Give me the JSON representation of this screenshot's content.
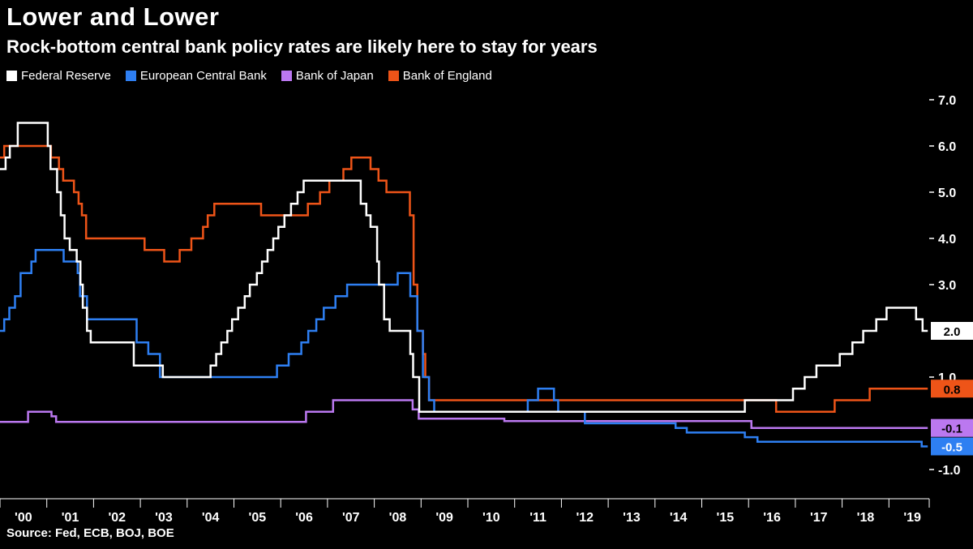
{
  "header": {
    "title": "Lower and Lower",
    "subtitle": "Rock-bottom central bank policy rates are likely here to stay for years"
  },
  "legend": {
    "items": [
      {
        "label": "Federal Reserve",
        "color": "#ffffff"
      },
      {
        "label": "European Central Bank",
        "color": "#2e7ff2"
      },
      {
        "label": "Bank of Japan",
        "color": "#bb78f0"
      },
      {
        "label": "Bank of England",
        "color": "#ee5418"
      }
    ]
  },
  "chart_data": {
    "type": "line",
    "subtype": "step",
    "title": "Lower and Lower",
    "subtitle": "Rock-bottom central bank policy rates are likely here to stay for years",
    "unit": "percent",
    "grid": false,
    "legend_position": "top-left",
    "x_range": [
      2000,
      2019.83
    ],
    "ylim": [
      -1.6,
      7.25
    ],
    "y_ticks": [
      {
        "value": 7,
        "label": "7.0"
      },
      {
        "value": 6,
        "label": "6.0"
      },
      {
        "value": 5,
        "label": "5.0"
      },
      {
        "value": 4,
        "label": "4.0"
      },
      {
        "value": 3,
        "label": "3.0"
      },
      {
        "value": 1,
        "label": "1.0"
      },
      {
        "value": -1,
        "label": "-1.0"
      }
    ],
    "x_ticks": [
      {
        "year": 2000,
        "label": "'00"
      },
      {
        "year": 2001,
        "label": "'01"
      },
      {
        "year": 2002,
        "label": "'02"
      },
      {
        "year": 2003,
        "label": "'03"
      },
      {
        "year": 2004,
        "label": "'04"
      },
      {
        "year": 2005,
        "label": "'05"
      },
      {
        "year": 2006,
        "label": "'06"
      },
      {
        "year": 2007,
        "label": "'07"
      },
      {
        "year": 2008,
        "label": "'08"
      },
      {
        "year": 2009,
        "label": "'09"
      },
      {
        "year": 2010,
        "label": "'10"
      },
      {
        "year": 2011,
        "label": "'11"
      },
      {
        "year": 2012,
        "label": "'12"
      },
      {
        "year": 2013,
        "label": "'13"
      },
      {
        "year": 2014,
        "label": "'14"
      },
      {
        "year": 2015,
        "label": "'15"
      },
      {
        "year": 2016,
        "label": "'16"
      },
      {
        "year": 2017,
        "label": "'17"
      },
      {
        "year": 2018,
        "label": "'18"
      },
      {
        "year": 2019,
        "label": "'19"
      }
    ],
    "series": [
      {
        "name": "Federal Reserve",
        "color": "#ffffff",
        "end_label": {
          "text": "2.0",
          "bg": "#ffffff",
          "fg": "#000000"
        },
        "points": [
          [
            2000,
            5.5
          ],
          [
            2000.12,
            5.75
          ],
          [
            2000.21,
            6.0
          ],
          [
            2000.38,
            6.5
          ],
          [
            2001.02,
            6.0
          ],
          [
            2001.08,
            5.5
          ],
          [
            2001.22,
            5.0
          ],
          [
            2001.3,
            4.5
          ],
          [
            2001.38,
            4.0
          ],
          [
            2001.49,
            3.75
          ],
          [
            2001.64,
            3.5
          ],
          [
            2001.72,
            3.0
          ],
          [
            2001.77,
            2.5
          ],
          [
            2001.86,
            2.0
          ],
          [
            2001.94,
            1.75
          ],
          [
            2002.86,
            1.25
          ],
          [
            2003.48,
            1.0
          ],
          [
            2004.5,
            1.25
          ],
          [
            2004.62,
            1.5
          ],
          [
            2004.73,
            1.75
          ],
          [
            2004.86,
            2.0
          ],
          [
            2004.96,
            2.25
          ],
          [
            2005.09,
            2.5
          ],
          [
            2005.23,
            2.75
          ],
          [
            2005.34,
            3.0
          ],
          [
            2005.49,
            3.25
          ],
          [
            2005.6,
            3.5
          ],
          [
            2005.72,
            3.75
          ],
          [
            2005.84,
            4.0
          ],
          [
            2005.95,
            4.25
          ],
          [
            2006.08,
            4.5
          ],
          [
            2006.22,
            4.75
          ],
          [
            2006.36,
            5.0
          ],
          [
            2006.49,
            5.25
          ],
          [
            2007.71,
            4.75
          ],
          [
            2007.83,
            4.5
          ],
          [
            2007.92,
            4.25
          ],
          [
            2008.06,
            3.5
          ],
          [
            2008.1,
            3.0
          ],
          [
            2008.21,
            2.25
          ],
          [
            2008.33,
            2.0
          ],
          [
            2008.77,
            1.5
          ],
          [
            2008.83,
            1.0
          ],
          [
            2008.96,
            0.25
          ],
          [
            2015.92,
            0.5
          ],
          [
            2016.95,
            0.75
          ],
          [
            2017.2,
            1.0
          ],
          [
            2017.45,
            1.25
          ],
          [
            2017.95,
            1.5
          ],
          [
            2018.22,
            1.75
          ],
          [
            2018.45,
            2.0
          ],
          [
            2018.73,
            2.25
          ],
          [
            2018.95,
            2.5
          ],
          [
            2019.58,
            2.25
          ],
          [
            2019.72,
            2.0
          ]
        ]
      },
      {
        "name": "European Central Bank",
        "color": "#2e7ff2",
        "end_label": {
          "text": "-0.5",
          "bg": "#2e7ff2",
          "fg": "#ffffff"
        },
        "points": [
          [
            2000,
            2.0
          ],
          [
            2000.09,
            2.25
          ],
          [
            2000.2,
            2.5
          ],
          [
            2000.32,
            2.75
          ],
          [
            2000.44,
            3.25
          ],
          [
            2000.67,
            3.5
          ],
          [
            2000.76,
            3.75
          ],
          [
            2001.36,
            3.5
          ],
          [
            2001.66,
            3.25
          ],
          [
            2001.71,
            2.75
          ],
          [
            2001.86,
            2.25
          ],
          [
            2002.92,
            1.75
          ],
          [
            2003.17,
            1.5
          ],
          [
            2003.42,
            1.0
          ],
          [
            2005.92,
            1.25
          ],
          [
            2006.17,
            1.5
          ],
          [
            2006.44,
            1.75
          ],
          [
            2006.59,
            2.0
          ],
          [
            2006.76,
            2.25
          ],
          [
            2006.92,
            2.5
          ],
          [
            2007.17,
            2.75
          ],
          [
            2007.42,
            3.0
          ],
          [
            2008.5,
            3.25
          ],
          [
            2008.77,
            2.75
          ],
          [
            2008.92,
            2.0
          ],
          [
            2009.04,
            1.0
          ],
          [
            2009.17,
            0.5
          ],
          [
            2009.28,
            0.25
          ],
          [
            2011.28,
            0.5
          ],
          [
            2011.5,
            0.75
          ],
          [
            2011.84,
            0.5
          ],
          [
            2011.93,
            0.25
          ],
          [
            2012.5,
            0.0
          ],
          [
            2014.44,
            -0.1
          ],
          [
            2014.68,
            -0.2
          ],
          [
            2015.92,
            -0.3
          ],
          [
            2016.19,
            -0.4
          ],
          [
            2019.7,
            -0.5
          ]
        ]
      },
      {
        "name": "Bank of Japan",
        "color": "#bb78f0",
        "end_label": {
          "text": "-0.1",
          "bg": "#bb78f0",
          "fg": "#000000"
        },
        "points": [
          [
            2000,
            0.03
          ],
          [
            2000.6,
            0.25
          ],
          [
            2001.1,
            0.15
          ],
          [
            2001.2,
            0.03
          ],
          [
            2006.54,
            0.25
          ],
          [
            2007.12,
            0.5
          ],
          [
            2008.82,
            0.3
          ],
          [
            2008.95,
            0.1
          ],
          [
            2010.78,
            0.05
          ],
          [
            2016.06,
            -0.1
          ]
        ]
      },
      {
        "name": "Bank of England",
        "color": "#ee5418",
        "end_label": {
          "text": "0.8",
          "bg": "#ee5418",
          "fg": "#000000"
        },
        "points": [
          [
            2000,
            5.75
          ],
          [
            2000.09,
            6.0
          ],
          [
            2001.09,
            5.75
          ],
          [
            2001.26,
            5.5
          ],
          [
            2001.35,
            5.25
          ],
          [
            2001.58,
            5.0
          ],
          [
            2001.68,
            4.75
          ],
          [
            2001.75,
            4.5
          ],
          [
            2001.84,
            4.0
          ],
          [
            2003.09,
            3.75
          ],
          [
            2003.51,
            3.5
          ],
          [
            2003.84,
            3.75
          ],
          [
            2004.09,
            4.0
          ],
          [
            2004.34,
            4.25
          ],
          [
            2004.44,
            4.5
          ],
          [
            2004.58,
            4.75
          ],
          [
            2005.58,
            4.5
          ],
          [
            2006.58,
            4.75
          ],
          [
            2006.84,
            5.0
          ],
          [
            2007.04,
            5.25
          ],
          [
            2007.34,
            5.5
          ],
          [
            2007.51,
            5.75
          ],
          [
            2007.92,
            5.5
          ],
          [
            2008.09,
            5.25
          ],
          [
            2008.26,
            5.0
          ],
          [
            2008.76,
            4.5
          ],
          [
            2008.84,
            3.0
          ],
          [
            2008.92,
            2.0
          ],
          [
            2009.04,
            1.5
          ],
          [
            2009.09,
            1.0
          ],
          [
            2009.17,
            0.5
          ],
          [
            2016.59,
            0.25
          ],
          [
            2017.84,
            0.5
          ],
          [
            2018.59,
            0.75
          ]
        ]
      }
    ]
  },
  "source": {
    "text": "Source: Fed, ECB, BOJ, BOE"
  }
}
